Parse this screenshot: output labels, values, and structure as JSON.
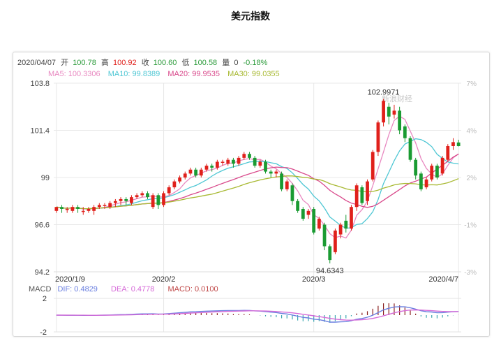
{
  "title": "美元指数",
  "info": {
    "date": "2020/04/07",
    "open_label": "开",
    "open": "100.78",
    "high_label": "高",
    "high": "100.92",
    "close_label": "收",
    "close": "100.60",
    "low_label": "低",
    "low": "100.58",
    "volume_label": "量",
    "volume": "0",
    "change": "-0.18%"
  },
  "ma": [
    {
      "label": "MA5: 100.3306",
      "color": "#e888c0"
    },
    {
      "label": "MA10: 99.8389",
      "color": "#4fc7d4"
    },
    {
      "label": "MA20: 99.9535",
      "color": "#d94a8c"
    },
    {
      "label": "MA30: 99.0355",
      "color": "#a8b932"
    }
  ],
  "macd_legend": [
    {
      "label": "MACD",
      "color": "#555555"
    },
    {
      "label": "DIF: 0.4829",
      "color": "#6a7fe0"
    },
    {
      "label": "DEA: 0.4778",
      "color": "#d66ad8"
    },
    {
      "label": "MACD: 0.0100",
      "color": "#c04848"
    }
  ],
  "annotations": {
    "max": "102.9971",
    "min": "94.6343"
  },
  "watermark": "新浪财经",
  "colors": {
    "up": "#e0201b",
    "down": "#1a9b32",
    "grid": "#e8e8e8"
  },
  "chart_data": {
    "type": "candlestick",
    "title": "美元指数",
    "y_ticks": [
      "103.8",
      "101.4",
      "99",
      "96.6",
      "94.2"
    ],
    "y_pct_ticks": [
      "7%",
      "4%",
      "2%",
      "-1%",
      "-3%"
    ],
    "x_ticks": [
      "2020/1/9",
      "2020/2",
      "2020/3",
      "2020/4/7"
    ],
    "ylim": [
      94.2,
      103.8
    ],
    "macd_ticks": [
      "2",
      "-2"
    ],
    "macd_ylim": [
      -2,
      2
    ],
    "candles": [
      [
        97.3,
        97.5,
        97.2,
        97.5
      ],
      [
        97.5,
        97.4,
        97.2,
        97.6
      ],
      [
        97.4,
        97.4,
        97.2,
        97.5
      ],
      [
        97.3,
        97.5,
        97.2,
        97.6
      ],
      [
        97.5,
        97.4,
        97.2,
        97.6
      ],
      [
        97.3,
        97.3,
        97.1,
        97.5
      ],
      [
        97.3,
        97.4,
        97.2,
        97.5
      ],
      [
        97.3,
        97.5,
        97.1,
        97.6
      ],
      [
        97.5,
        97.6,
        97.4,
        97.7
      ],
      [
        97.6,
        97.6,
        97.4,
        97.7
      ],
      [
        97.5,
        97.7,
        97.4,
        97.8
      ],
      [
        97.7,
        97.8,
        97.5,
        97.9
      ],
      [
        97.8,
        97.9,
        97.6,
        98.0
      ],
      [
        97.9,
        97.8,
        97.6,
        98.0
      ],
      [
        97.7,
        98.0,
        97.6,
        98.1
      ],
      [
        98.0,
        98.1,
        97.9,
        98.2
      ],
      [
        98.1,
        98.2,
        98.0,
        98.3
      ],
      [
        98.2,
        98.0,
        97.9,
        98.3
      ],
      [
        97.5,
        98.1,
        97.4,
        98.2
      ],
      [
        98.1,
        97.6,
        97.4,
        98.2
      ],
      [
        97.6,
        98.2,
        97.5,
        98.3
      ],
      [
        98.2,
        98.5,
        98.1,
        98.6
      ],
      [
        98.5,
        98.8,
        98.4,
        98.9
      ],
      [
        98.8,
        99.0,
        98.7,
        99.1
      ],
      [
        99.0,
        99.2,
        98.9,
        99.3
      ],
      [
        99.2,
        99.4,
        99.1,
        99.5
      ],
      [
        99.4,
        99.1,
        99.0,
        99.5
      ],
      [
        99.1,
        99.4,
        99.0,
        99.5
      ],
      [
        99.4,
        99.6,
        99.3,
        99.7
      ],
      [
        99.6,
        99.5,
        99.3,
        99.7
      ],
      [
        99.5,
        99.8,
        99.4,
        99.9
      ],
      [
        99.8,
        99.8,
        99.6,
        99.9
      ],
      [
        99.7,
        99.9,
        99.6,
        100.0
      ],
      [
        99.9,
        99.7,
        99.5,
        100.0
      ],
      [
        99.7,
        100.0,
        99.6,
        100.1
      ],
      [
        100.0,
        100.2,
        99.9,
        100.3
      ],
      [
        100.2,
        100.0,
        99.9,
        100.3
      ],
      [
        100.0,
        99.6,
        99.5,
        100.1
      ],
      [
        99.6,
        99.8,
        99.5,
        99.9
      ],
      [
        99.8,
        99.3,
        99.2,
        99.9
      ],
      [
        99.3,
        99.2,
        99.0,
        99.4
      ],
      [
        99.2,
        99.3,
        99.0,
        99.4
      ],
      [
        99.2,
        98.4,
        98.3,
        99.3
      ],
      [
        98.4,
        98.8,
        98.3,
        98.9
      ],
      [
        98.6,
        97.8,
        97.6,
        98.7
      ],
      [
        97.8,
        97.3,
        97.2,
        97.9
      ],
      [
        97.4,
        96.9,
        96.8,
        97.5
      ],
      [
        97.1,
        97.3,
        96.9,
        97.4
      ],
      [
        97.4,
        96.2,
        96.1,
        97.5
      ],
      [
        96.4,
        96.9,
        96.3,
        97.0
      ],
      [
        96.6,
        95.5,
        95.3,
        96.7
      ],
      [
        95.5,
        94.8,
        94.63,
        95.6
      ],
      [
        95.2,
        96.3,
        95.1,
        96.4
      ],
      [
        96.1,
        96.6,
        95.9,
        96.7
      ],
      [
        96.8,
        96.4,
        96.2,
        97.1
      ],
      [
        96.4,
        97.5,
        96.3,
        97.6
      ],
      [
        97.5,
        98.6,
        97.3,
        98.7
      ],
      [
        98.5,
        97.7,
        97.6,
        98.6
      ],
      [
        97.8,
        98.8,
        97.6,
        98.9
      ],
      [
        98.9,
        100.3,
        98.8,
        100.4
      ],
      [
        100.3,
        101.8,
        100.1,
        101.9
      ],
      [
        101.8,
        102.9,
        101.6,
        103.0
      ],
      [
        102.6,
        102.1,
        101.7,
        102.8
      ],
      [
        102.2,
        102.4,
        102.0,
        102.7
      ],
      [
        102.4,
        101.4,
        101.2,
        102.6
      ],
      [
        101.6,
        101.0,
        100.8,
        101.7
      ],
      [
        101.0,
        99.9,
        99.8,
        101.1
      ],
      [
        99.9,
        99.1,
        98.9,
        100.0
      ],
      [
        99.2,
        98.4,
        98.3,
        99.3
      ],
      [
        98.5,
        98.9,
        98.4,
        99.0
      ],
      [
        98.9,
        99.6,
        98.8,
        99.7
      ],
      [
        99.6,
        99.0,
        98.9,
        99.7
      ],
      [
        99.2,
        100.0,
        99.1,
        100.1
      ],
      [
        99.9,
        100.6,
        99.8,
        100.7
      ],
      [
        100.6,
        100.8,
        100.4,
        101.0
      ],
      [
        100.78,
        100.6,
        100.58,
        100.92
      ]
    ]
  }
}
